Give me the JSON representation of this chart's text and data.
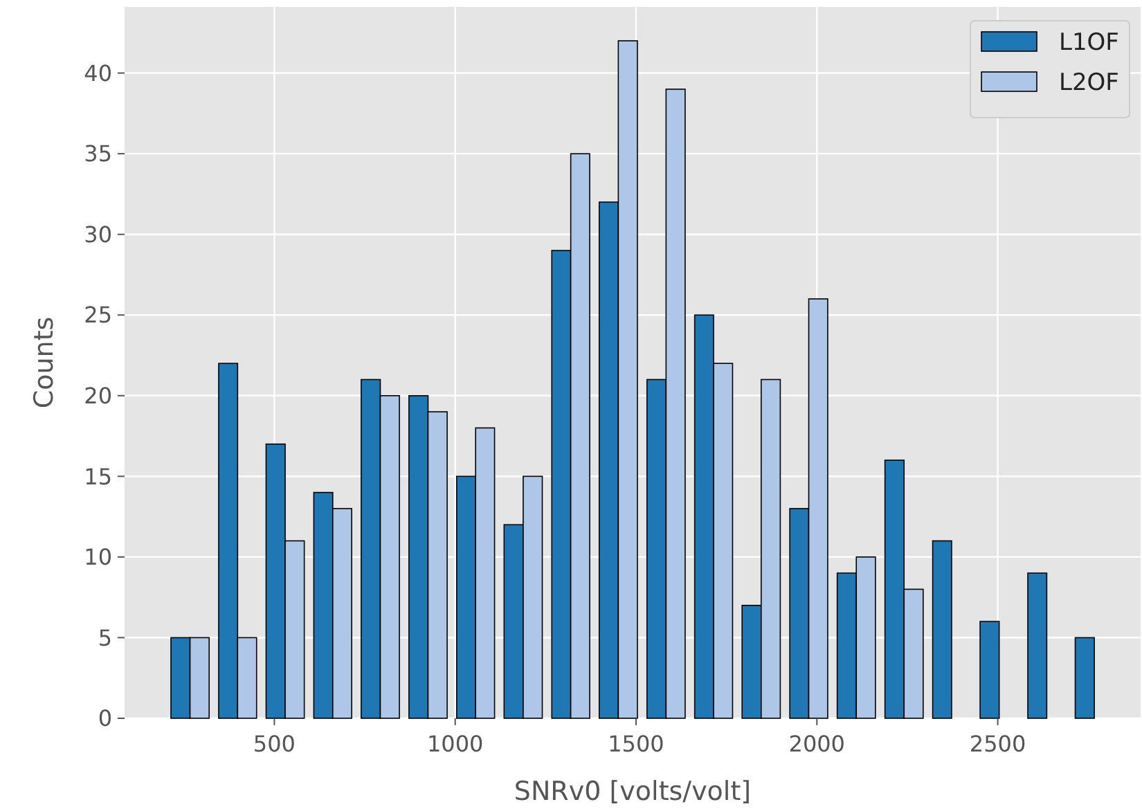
{
  "chart_data": {
    "type": "histogram",
    "xlabel": "SNRv0 [volts/volt]",
    "ylabel": "Counts",
    "bins": [
      201,
      333,
      464,
      596,
      727,
      859,
      991,
      1122,
      1254,
      1385,
      1517,
      1649,
      1780,
      1912,
      2043,
      2175,
      2307,
      2438,
      2570,
      2701,
      2833
    ],
    "series": [
      {
        "name": "L1OF",
        "color": "#1f77b4",
        "values": [
          5,
          22,
          17,
          14,
          21,
          20,
          15,
          12,
          29,
          32,
          21,
          25,
          7,
          13,
          9,
          16,
          11,
          6,
          9,
          5
        ]
      },
      {
        "name": "L2OF",
        "color": "#aec7e8",
        "values": [
          5,
          5,
          11,
          13,
          20,
          19,
          18,
          15,
          35,
          42,
          39,
          22,
          21,
          26,
          10,
          8,
          0,
          0,
          0,
          0
        ]
      }
    ],
    "xlim": [
      86,
      2895
    ],
    "ylim": [
      0,
      44.1
    ],
    "xticks": [
      500,
      1000,
      1500,
      2000,
      2500
    ],
    "yticks": [
      0,
      5,
      10,
      15,
      20,
      25,
      30,
      35,
      40
    ],
    "grid": true,
    "legend": "top right"
  }
}
